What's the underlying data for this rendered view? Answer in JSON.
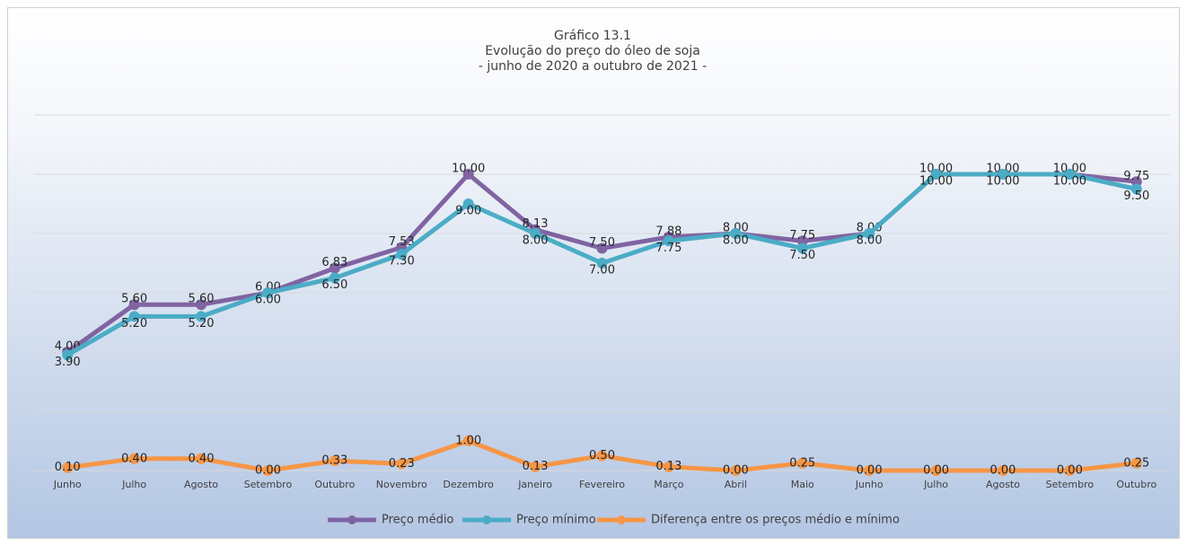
{
  "chart_data": {
    "type": "line",
    "title": "Gráfico 13.1",
    "subtitle": "Evolução do preço do óleo de soja",
    "subtitle2": "- junho de 2020 a outubro de 2021 -",
    "categories": [
      "Junho",
      "Julho",
      "Agosto",
      "Setembro",
      "Outubro",
      "Novembro",
      "Dezembro",
      "Janeiro",
      "Fevereiro",
      "Março",
      "Abril",
      "Maio",
      "Junho",
      "Julho",
      "Agosto",
      "Setembro",
      "Outubro"
    ],
    "series": [
      {
        "name": "Preço médio",
        "color": "#8064a2",
        "values": [
          4,
          5.6,
          5.6,
          6,
          6.83,
          7.53,
          10,
          8.13,
          7.5,
          7.88,
          8,
          7.75,
          8,
          10,
          10,
          10,
          9.75
        ],
        "value_labels": [
          "4.00",
          "5.60",
          "5.60",
          "6.00",
          "6.83",
          "7.53",
          "10.00",
          "8.13",
          "7.50",
          "7.88",
          "8.00",
          "7.75",
          "8.00",
          "10.00",
          "10.00",
          "10.00",
          "9.75"
        ]
      },
      {
        "name": "Preço mínimo",
        "color": "#4bacc6",
        "values": [
          3.9,
          5.2,
          5.2,
          6,
          6.5,
          7.3,
          9,
          8,
          7,
          7.75,
          8,
          7.5,
          8,
          10,
          10,
          10,
          9.5
        ],
        "value_labels": [
          "3.90",
          "5.20",
          "5.20",
          "6.00",
          "6.50",
          "7.30",
          "9.00",
          "8.00",
          "7.00",
          "7.75",
          "8.00",
          "7.50",
          "8.00",
          "10.00",
          "10.00",
          "10.00",
          "9.50"
        ]
      },
      {
        "name": "Diferença entre os preços médio e mínimo",
        "color": "#f79646",
        "values": [
          0.1,
          0.4,
          0.4,
          0,
          0.33,
          0.23,
          1,
          0.13,
          0.5,
          0.13,
          0,
          0.25,
          0,
          0,
          0,
          0,
          0.25
        ],
        "value_labels": [
          "0.10",
          "0.40",
          "0.40",
          "0.00",
          "0.33",
          "0.23",
          "1.00",
          "0.13",
          "0.50",
          "0.13",
          "0.00",
          "0.25",
          "0.00",
          "0.00",
          "0.00",
          "0.00",
          "0.25"
        ]
      }
    ],
    "ylim": [
      0,
      12
    ],
    "yticks": [
      0,
      2,
      4,
      6,
      8,
      10,
      12
    ],
    "grid": true,
    "legend": "bottom"
  }
}
